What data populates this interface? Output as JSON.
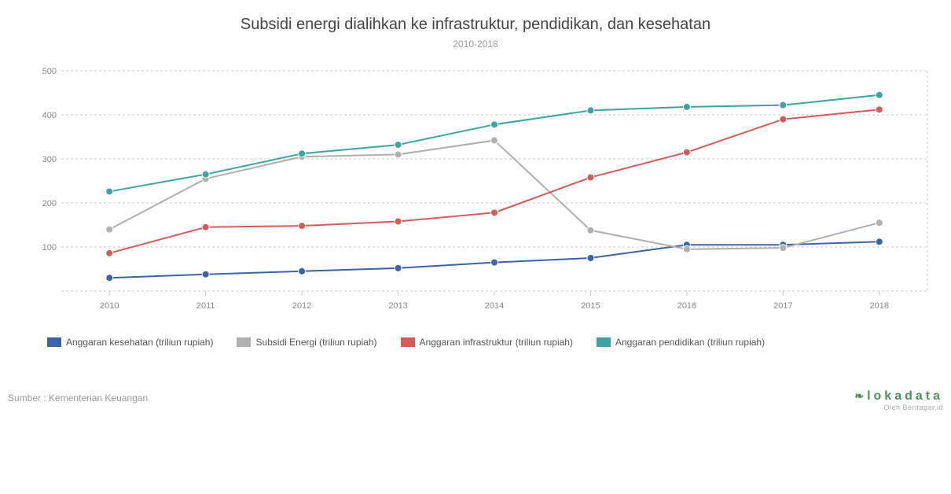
{
  "title": "Subsidi energi dialihkan ke infrastruktur, pendidikan, dan kesehatan",
  "subtitle": "2010-2018",
  "source": "Sumber : Kementerian Keuangan",
  "logo": {
    "main": "lokadata",
    "sub": "Oleh Beritagar.id"
  },
  "chart": {
    "type": "line",
    "background_color": "#ffffff",
    "grid_color": "#cccccc",
    "grid_dash": "3,3",
    "title_fontsize": 20,
    "label_fontsize": 11,
    "ylim": [
      0,
      500
    ],
    "ytick_step": 100,
    "yticks": [
      100,
      200,
      300,
      400,
      500
    ],
    "categories_key": "years",
    "years": [
      "2010",
      "2011",
      "2012",
      "2013",
      "2014",
      "2015",
      "2016",
      "2017",
      "2018"
    ],
    "line_width": 2,
    "marker_radius": 4.5,
    "series": [
      {
        "id": "kesehatan",
        "label": "Anggaran kesehatan (triliun rupiah)",
        "color": "#3b64a8",
        "values": [
          30,
          38,
          45,
          52,
          65,
          75,
          105,
          105,
          112
        ]
      },
      {
        "id": "subsidi",
        "label": "Subsidi Energi (triliun rupiah)",
        "color": "#b0b0b0",
        "values": [
          140,
          255,
          305,
          310,
          342,
          138,
          95,
          98,
          155
        ]
      },
      {
        "id": "infrastruktur",
        "label": "Anggaran infrastruktur (triliun rupiah)",
        "color": "#d65a5a",
        "values": [
          86,
          145,
          148,
          158,
          178,
          258,
          315,
          390,
          412
        ]
      },
      {
        "id": "pendidikan",
        "label": "Anggaran pendidikan (triliun rupiah)",
        "color": "#3aa6a0",
        "values": [
          226,
          265,
          312,
          332,
          378,
          410,
          418,
          422,
          445
        ]
      }
    ]
  }
}
